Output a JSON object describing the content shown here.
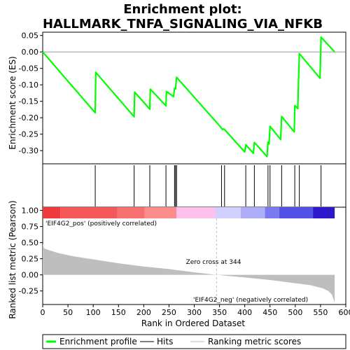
{
  "chart_data": {
    "type": "line",
    "title_line1": "Enrichment plot:",
    "title_line2": "HALLMARK_TNFA_SIGNALING_VIA_NFKB",
    "es_panel": {
      "ylabel": "Enrichment score (ES)",
      "ylim": [
        -0.34,
        0.06
      ],
      "yticks": [
        -0.3,
        -0.25,
        -0.2,
        -0.15,
        -0.1,
        -0.05,
        0.0,
        0.05
      ],
      "ytick_labels": [
        "-0.30",
        "-0.25",
        "-0.20",
        "-0.15",
        "-0.10",
        "-0.05",
        "0.00",
        "0.05"
      ],
      "curve_color": "#00ff00",
      "curve": [
        [
          0,
          0.0
        ],
        [
          104,
          -0.185
        ],
        [
          105,
          -0.062
        ],
        [
          181,
          -0.197
        ],
        [
          182,
          -0.122
        ],
        [
          212,
          -0.174
        ],
        [
          213,
          -0.113
        ],
        [
          244,
          -0.164
        ],
        [
          245,
          -0.12
        ],
        [
          259,
          -0.136
        ],
        [
          261,
          -0.11
        ],
        [
          263,
          -0.112
        ],
        [
          265,
          -0.077
        ],
        [
          351,
          -0.226
        ],
        [
          354,
          -0.232
        ],
        [
          356,
          -0.236
        ],
        [
          358,
          -0.234
        ],
        [
          360,
          -0.236
        ],
        [
          400,
          -0.304
        ],
        [
          402,
          -0.282
        ],
        [
          417,
          -0.308
        ],
        [
          419,
          -0.275
        ],
        [
          444,
          -0.318
        ],
        [
          446,
          -0.274
        ],
        [
          448,
          -0.28
        ],
        [
          450,
          -0.226
        ],
        [
          471,
          -0.266
        ],
        [
          473,
          -0.196
        ],
        [
          498,
          -0.243
        ],
        [
          499,
          -0.163
        ],
        [
          505,
          -0.172
        ],
        [
          506,
          -0.114
        ],
        [
          508,
          -0.005
        ],
        [
          549,
          -0.08
        ],
        [
          551,
          0.045
        ],
        [
          578,
          0.0
        ]
      ]
    },
    "hits": [
      104,
      181,
      212,
      244,
      261,
      263,
      265,
      354,
      360,
      402,
      419,
      446,
      450,
      473,
      499,
      508,
      551
    ],
    "color_bar": [
      {
        "from": 0,
        "to": 35,
        "color": "#ee3b3b"
      },
      {
        "from": 35,
        "to": 148,
        "color": "#f45858"
      },
      {
        "from": 148,
        "to": 202,
        "color": "#f77070"
      },
      {
        "from": 202,
        "to": 265,
        "color": "#fb8c8c"
      },
      {
        "from": 265,
        "to": 341,
        "color": "#ffc0ee"
      },
      {
        "from": 341,
        "to": 392,
        "color": "#d0d0ff"
      },
      {
        "from": 392,
        "to": 440,
        "color": "#aeaef6"
      },
      {
        "from": 440,
        "to": 468,
        "color": "#7a7af0"
      },
      {
        "from": 468,
        "to": 535,
        "color": "#5252e6"
      },
      {
        "from": 535,
        "to": 578,
        "color": "#2d18cc"
      }
    ],
    "metric_panel": {
      "ylabel": "Ranked list metric (Pearson)",
      "xlabel": "Rank in Ordered Dataset",
      "xlim": [
        0,
        600
      ],
      "ylim": [
        -0.46,
        1.05
      ],
      "xticks": [
        0,
        50,
        100,
        150,
        200,
        250,
        300,
        350,
        400,
        450,
        500,
        550,
        600
      ],
      "yticks": [
        -0.25,
        0.0,
        0.25,
        0.5,
        0.75,
        1.0
      ],
      "ytick_labels": [
        "-0.25",
        "0.00",
        "0.25",
        "0.50",
        "0.75",
        "1.00"
      ],
      "fill_color": "#bebebe",
      "metric": [
        [
          0,
          0.48
        ],
        [
          3,
          0.41
        ],
        [
          10,
          0.39
        ],
        [
          30,
          0.34
        ],
        [
          60,
          0.29
        ],
        [
          100,
          0.24
        ],
        [
          150,
          0.18
        ],
        [
          200,
          0.13
        ],
        [
          250,
          0.09
        ],
        [
          300,
          0.04
        ],
        [
          344,
          0.0
        ],
        [
          400,
          -0.04
        ],
        [
          450,
          -0.08
        ],
        [
          500,
          -0.13
        ],
        [
          530,
          -0.16
        ],
        [
          555,
          -0.21
        ],
        [
          565,
          -0.25
        ],
        [
          572,
          -0.3
        ],
        [
          576,
          -0.38
        ],
        [
          578,
          -0.44
        ]
      ],
      "zero_cross": 344,
      "zero_cross_label": "Zero cross at 344",
      "pos_label": "'EIF4G2_pos' (positively correlated)",
      "neg_label": "'EIF4G2_neg' (negatively correlated)",
      "pos_label_color": "#cc0000",
      "neg_label_color": "#0000cc"
    },
    "legend": [
      {
        "label": "Enrichment profile",
        "color": "#00ff00",
        "style": "thick"
      },
      {
        "label": "Hits",
        "color": "#000000",
        "style": "thin"
      },
      {
        "label": "Ranking metric scores",
        "color": "#bebebe",
        "style": "thin"
      }
    ]
  }
}
